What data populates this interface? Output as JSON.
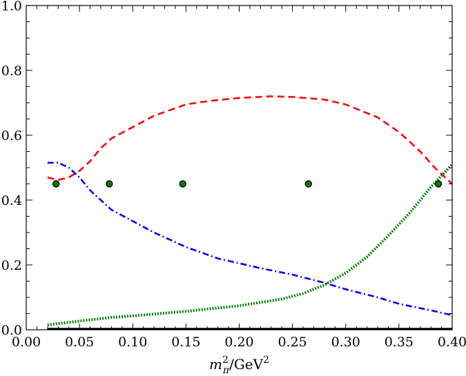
{
  "chart_data": {
    "type": "line",
    "xlabel": {
      "base": "m",
      "sup": "2",
      "sub": "π",
      "rest": "/GeV",
      "rest_sup": "2"
    },
    "ylabel": "",
    "xlim": [
      0.0,
      0.4
    ],
    "ylim": [
      0.0,
      1.0
    ],
    "x_ticks": [
      "0.00",
      "0.05",
      "0.10",
      "0.15",
      "0.20",
      "0.25",
      "0.30",
      "0.35",
      "0.40"
    ],
    "y_ticks": [
      "0.0",
      "0.2",
      "0.4",
      "0.6",
      "0.8",
      "1.0"
    ],
    "grid": false,
    "legend": "none",
    "series": [
      {
        "style": "dashed",
        "color": "#ff0000",
        "points": [
          [
            0.02,
            0.47
          ],
          [
            0.03,
            0.462
          ],
          [
            0.04,
            0.47
          ],
          [
            0.05,
            0.49
          ],
          [
            0.06,
            0.52
          ],
          [
            0.07,
            0.56
          ],
          [
            0.08,
            0.59
          ],
          [
            0.1,
            0.625
          ],
          [
            0.12,
            0.66
          ],
          [
            0.15,
            0.695
          ],
          [
            0.17,
            0.705
          ],
          [
            0.2,
            0.715
          ],
          [
            0.23,
            0.72
          ],
          [
            0.25,
            0.718
          ],
          [
            0.28,
            0.71
          ],
          [
            0.3,
            0.695
          ],
          [
            0.33,
            0.655
          ],
          [
            0.35,
            0.61
          ],
          [
            0.37,
            0.55
          ],
          [
            0.385,
            0.495
          ],
          [
            0.4,
            0.45
          ]
        ]
      },
      {
        "style": "dashdot",
        "color": "#0000ff",
        "points": [
          [
            0.02,
            0.515
          ],
          [
            0.03,
            0.515
          ],
          [
            0.04,
            0.5
          ],
          [
            0.05,
            0.47
          ],
          [
            0.06,
            0.43
          ],
          [
            0.07,
            0.4
          ],
          [
            0.08,
            0.37
          ],
          [
            0.1,
            0.335
          ],
          [
            0.12,
            0.3
          ],
          [
            0.15,
            0.255
          ],
          [
            0.18,
            0.22
          ],
          [
            0.2,
            0.205
          ],
          [
            0.22,
            0.19
          ],
          [
            0.25,
            0.17
          ],
          [
            0.28,
            0.145
          ],
          [
            0.3,
            0.125
          ],
          [
            0.33,
            0.1
          ],
          [
            0.35,
            0.08
          ],
          [
            0.38,
            0.06
          ],
          [
            0.4,
            0.045
          ]
        ]
      },
      {
        "style": "dotted",
        "color": "#008000",
        "points": [
          [
            0.02,
            0.015
          ],
          [
            0.05,
            0.027
          ],
          [
            0.08,
            0.038
          ],
          [
            0.1,
            0.043
          ],
          [
            0.15,
            0.057
          ],
          [
            0.2,
            0.074
          ],
          [
            0.24,
            0.095
          ],
          [
            0.26,
            0.112
          ],
          [
            0.28,
            0.138
          ],
          [
            0.3,
            0.175
          ],
          [
            0.32,
            0.225
          ],
          [
            0.34,
            0.29
          ],
          [
            0.36,
            0.36
          ],
          [
            0.38,
            0.44
          ],
          [
            0.4,
            0.51
          ]
        ]
      },
      {
        "style": "solid",
        "color": "#000000",
        "points": [
          [
            0.02,
            0.003
          ],
          [
            0.4,
            0.003
          ]
        ]
      }
    ],
    "markers": {
      "color": "#008000",
      "edge": "#000000",
      "points": [
        [
          0.028,
          0.45
        ],
        [
          0.078,
          0.45
        ],
        [
          0.147,
          0.45
        ],
        [
          0.265,
          0.45
        ],
        [
          0.387,
          0.45
        ]
      ]
    }
  }
}
